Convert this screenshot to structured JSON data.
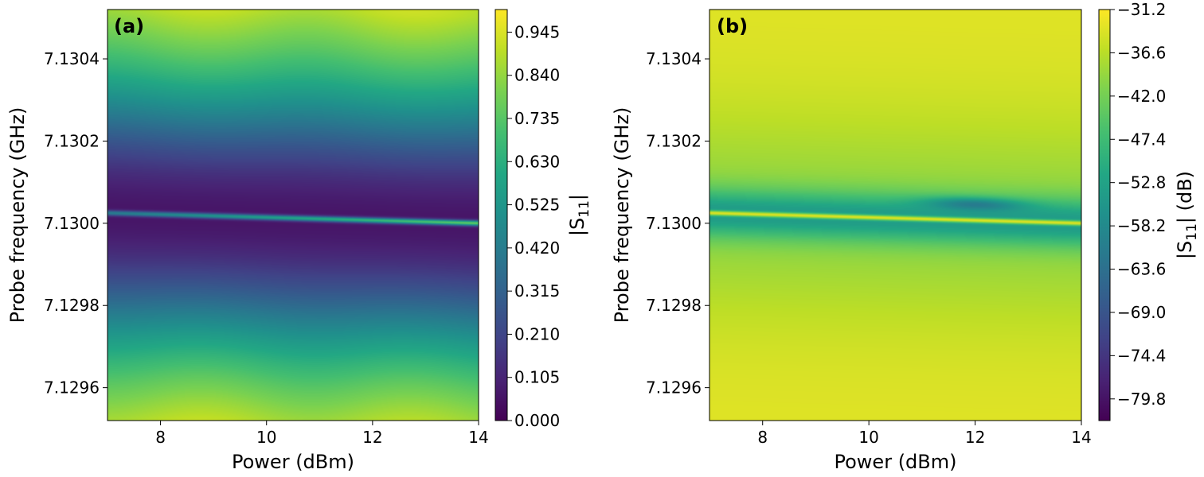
{
  "chart_data": [
    {
      "type": "heatmap",
      "panel_label": "(a)",
      "xlabel": "Power (dBm)",
      "ylabel": "Probe frequency (GHz)",
      "xlim": [
        7,
        14
      ],
      "ylim": [
        7.12952,
        7.13052
      ],
      "xticks": [
        8,
        10,
        12,
        14
      ],
      "xtick_labels": [
        "8",
        "10",
        "12",
        "14"
      ],
      "yticks": [
        7.1296,
        7.1298,
        7.13,
        7.1302,
        7.1304
      ],
      "ytick_labels": [
        "7.1296",
        "7.1298",
        "7.1300",
        "7.1302",
        "7.1304"
      ],
      "colorbar": {
        "label": "|S11|",
        "label_main": "|S",
        "label_sub": "11",
        "label_tail": "|",
        "range": [
          0.0,
          1.0
        ],
        "ticks": [
          0.0,
          0.105,
          0.21,
          0.315,
          0.42,
          0.525,
          0.63,
          0.735,
          0.84,
          0.945
        ],
        "tick_labels": [
          "0.000",
          "0.105",
          "0.210",
          "0.315",
          "0.420",
          "0.525",
          "0.630",
          "0.735",
          "0.840",
          "0.945"
        ]
      },
      "resonance": {
        "freq_at_x_min": 7.130025,
        "freq_at_x_max": 7.13,
        "min_value": 0.05,
        "peak_value": 0.6
      },
      "background": {
        "top_edge": 0.97,
        "bottom_edge": 0.95,
        "dip_center": 0.06,
        "dip_width_ghz": 0.00023
      }
    },
    {
      "type": "heatmap",
      "panel_label": "(b)",
      "xlabel": "Power (dBm)",
      "ylabel": "Probe frequency (GHz)",
      "xlim": [
        7,
        14
      ],
      "ylim": [
        7.12952,
        7.13052
      ],
      "xticks": [
        8,
        10,
        12,
        14
      ],
      "xtick_labels": [
        "8",
        "10",
        "12",
        "14"
      ],
      "yticks": [
        7.1296,
        7.1298,
        7.13,
        7.1302,
        7.1304
      ],
      "ytick_labels": [
        "7.1296",
        "7.1298",
        "7.1300",
        "7.1302",
        "7.1304"
      ],
      "colorbar": {
        "label": "|S11| (dB)",
        "label_main": "|S",
        "label_sub": "11",
        "label_tail": "| (dB)",
        "range": [
          -82.5,
          -31.2
        ],
        "ticks": [
          -31.2,
          -36.6,
          -42.0,
          -47.4,
          -52.8,
          -58.2,
          -63.6,
          -69.0,
          -74.4,
          -79.8
        ],
        "tick_labels": [
          "−31.2",
          "−36.6",
          "−42.0",
          "−47.4",
          "−52.8",
          "−58.2",
          "−63.6",
          "−69.0",
          "−74.4",
          "−79.8"
        ]
      },
      "resonance": {
        "freq_at_x_min": 7.130025,
        "freq_at_x_max": 7.13
      },
      "background": {
        "edge_db": -33.5,
        "mid_db": -40,
        "near_db": -55
      }
    }
  ]
}
